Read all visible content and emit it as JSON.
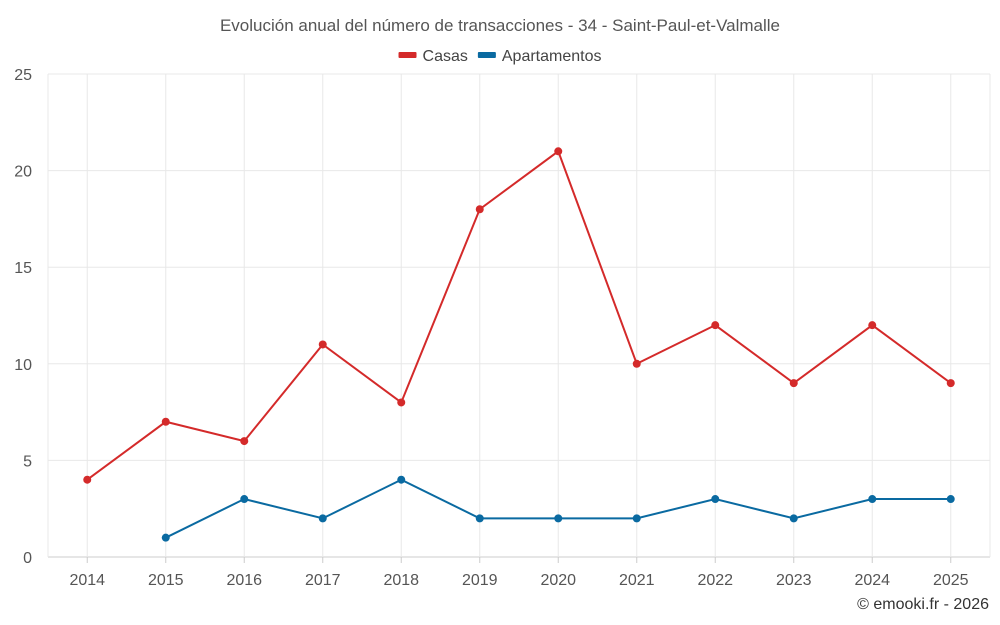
{
  "chart_data": {
    "type": "line",
    "title": "Evolución anual del número de transacciones - 34 - Saint-Paul-et-Valmalle",
    "categories": [
      "2014",
      "2015",
      "2016",
      "2017",
      "2018",
      "2019",
      "2020",
      "2021",
      "2022",
      "2023",
      "2024",
      "2025"
    ],
    "series": [
      {
        "name": "Casas",
        "color": "#d42a2a",
        "values": [
          4,
          7,
          6,
          11,
          8,
          18,
          21,
          10,
          12,
          9,
          12,
          9
        ]
      },
      {
        "name": "Apartamentos",
        "color": "#0a6aa1",
        "values": [
          null,
          1,
          3,
          2,
          4,
          2,
          2,
          2,
          3,
          2,
          3,
          3
        ]
      }
    ],
    "ylim": [
      0,
      25
    ],
    "yticks": [
      "0",
      "5",
      "10",
      "15",
      "20",
      "25"
    ],
    "xlabel": "",
    "ylabel": "",
    "grid": true,
    "legend_position": "top-center"
  },
  "credit": "© emooki.fr - 2026"
}
